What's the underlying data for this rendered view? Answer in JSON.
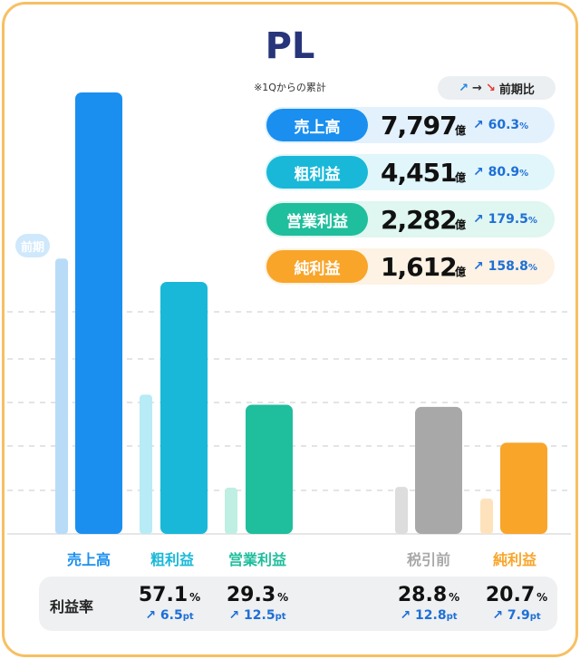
{
  "title": "PL",
  "subtitle": "※1Qからの累計",
  "legend_note": {
    "up": "↗",
    "flat": "→",
    "down": "↘",
    "label": "前期比"
  },
  "prev_label": "前期",
  "kpis": [
    {
      "label": "売上高",
      "value": "7,797",
      "unit": "億",
      "arrow": "↗",
      "growth": "60.3",
      "pct": "%",
      "color": "#1a8fef",
      "bg": "#e3f1fd"
    },
    {
      "label": "粗利益",
      "value": "4,451",
      "unit": "億",
      "arrow": "↗",
      "growth": "80.9",
      "pct": "%",
      "color": "#19b8d8",
      "bg": "#e1f6fa"
    },
    {
      "label": "営業利益",
      "value": "2,282",
      "unit": "億",
      "arrow": "↗",
      "growth": "179.5",
      "pct": "%",
      "color": "#1fbe9c",
      "bg": "#e0f6f0"
    },
    {
      "label": "純利益",
      "value": "1,612",
      "unit": "億",
      "arrow": "↗",
      "growth": "158.8",
      "pct": "%",
      "color": "#f8a52a",
      "bg": "#fdf2e3"
    }
  ],
  "margin_row_title": "利益率",
  "margins": [
    {
      "value": "57.1",
      "pct": "%",
      "arrow": "↗",
      "delta": "6.5",
      "unit": "pt"
    },
    {
      "value": "29.3",
      "pct": "%",
      "arrow": "↗",
      "delta": "12.5",
      "unit": "pt"
    },
    {
      "value": "28.8",
      "pct": "%",
      "arrow": "↗",
      "delta": "12.8",
      "unit": "pt"
    },
    {
      "value": "20.7",
      "pct": "%",
      "arrow": "↗",
      "delta": "7.9",
      "unit": "pt"
    }
  ],
  "chart_data": {
    "type": "bar",
    "categories": [
      "売上高",
      "粗利益",
      "営業利益",
      "税引前",
      "純利益"
    ],
    "series": [
      {
        "name": "前期",
        "values": [
          4863,
          2460,
          816,
          831,
          623
        ]
      },
      {
        "values": [
          7797,
          4451,
          2282,
          2244,
          1612
        ]
      }
    ],
    "ylim": [
      0,
      7797
    ],
    "grid": true,
    "colors": {
      "current": [
        "#1a8fef",
        "#19b8d8",
        "#1fbe9c",
        "#a8a8a8",
        "#f8a52a"
      ],
      "previous": [
        "#b8dcf8",
        "#b7ebf5",
        "#bfeee2",
        "#dddddd",
        "#fde2bb"
      ],
      "labels": [
        "#1a8fef",
        "#19b8d8",
        "#1fbe9c",
        "#a8a8a8",
        "#f8a52a"
      ]
    }
  }
}
